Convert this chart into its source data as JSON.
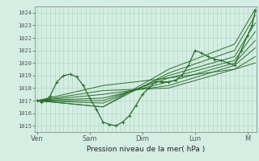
{
  "bg_color": "#d4eee4",
  "plot_bg_color": "#d4eee4",
  "grid_color": "#b0d4bb",
  "line_color": "#2d6e2d",
  "ylim": [
    1014.5,
    1024.5
  ],
  "yticks": [
    1015,
    1016,
    1017,
    1018,
    1019,
    1020,
    1021,
    1022,
    1023,
    1024
  ],
  "xlabel": "Pression niveau de la mer( hPa )",
  "xtick_labels": [
    "Ven",
    "Sam",
    "Dim",
    "Lun",
    "M"
  ],
  "xtick_positions": [
    0,
    48,
    96,
    144,
    192
  ],
  "xlim": [
    -2,
    200
  ],
  "n_vgrid": 50,
  "series": [
    {
      "x": [
        0,
        4,
        8,
        12,
        18,
        24,
        30,
        36,
        42,
        48,
        54,
        60,
        66,
        72,
        78,
        84,
        90,
        96,
        102,
        108,
        114,
        120,
        126,
        132,
        138,
        144,
        150,
        156,
        162,
        168,
        174,
        180,
        186,
        192,
        196,
        199
      ],
      "y": [
        1017.0,
        1016.9,
        1017.0,
        1017.4,
        1018.5,
        1019.0,
        1019.1,
        1018.9,
        1018.2,
        1017.2,
        1016.3,
        1015.3,
        1015.1,
        1015.0,
        1015.3,
        1015.8,
        1016.6,
        1017.5,
        1018.0,
        1018.5,
        1018.5,
        1018.5,
        1018.6,
        1019.0,
        1019.8,
        1021.0,
        1020.8,
        1020.5,
        1020.3,
        1020.2,
        1020.0,
        1019.8,
        1021.0,
        1022.2,
        1023.0,
        1024.2
      ],
      "marker": true,
      "lw": 0.9
    },
    {
      "x": [
        0,
        60,
        120,
        180,
        199
      ],
      "y": [
        1017.0,
        1016.5,
        1019.5,
        1021.5,
        1024.3
      ],
      "marker": false,
      "lw": 0.7
    },
    {
      "x": [
        0,
        60,
        120,
        180,
        199
      ],
      "y": [
        1017.0,
        1016.5,
        1019.2,
        1021.0,
        1023.8
      ],
      "marker": false,
      "lw": 0.7
    },
    {
      "x": [
        0,
        60,
        120,
        180,
        199
      ],
      "y": [
        1017.0,
        1016.8,
        1019.0,
        1020.5,
        1023.2
      ],
      "marker": false,
      "lw": 0.7
    },
    {
      "x": [
        0,
        60,
        120,
        180,
        199
      ],
      "y": [
        1017.0,
        1017.0,
        1018.8,
        1020.2,
        1022.5
      ],
      "marker": false,
      "lw": 0.7
    },
    {
      "x": [
        0,
        60,
        120,
        180,
        199
      ],
      "y": [
        1017.0,
        1017.2,
        1018.5,
        1020.0,
        1021.8
      ],
      "marker": false,
      "lw": 0.7
    },
    {
      "x": [
        0,
        60,
        120,
        180,
        199
      ],
      "y": [
        1017.0,
        1017.5,
        1018.2,
        1019.8,
        1021.2
      ],
      "marker": false,
      "lw": 0.7
    },
    {
      "x": [
        0,
        60,
        120,
        180,
        199
      ],
      "y": [
        1017.0,
        1017.8,
        1018.0,
        1019.5,
        1020.5
      ],
      "marker": false,
      "lw": 0.7
    },
    {
      "x": [
        0,
        60,
        120,
        180,
        199
      ],
      "y": [
        1017.0,
        1018.2,
        1018.8,
        1019.5,
        1020.0
      ],
      "marker": false,
      "lw": 0.7
    }
  ]
}
